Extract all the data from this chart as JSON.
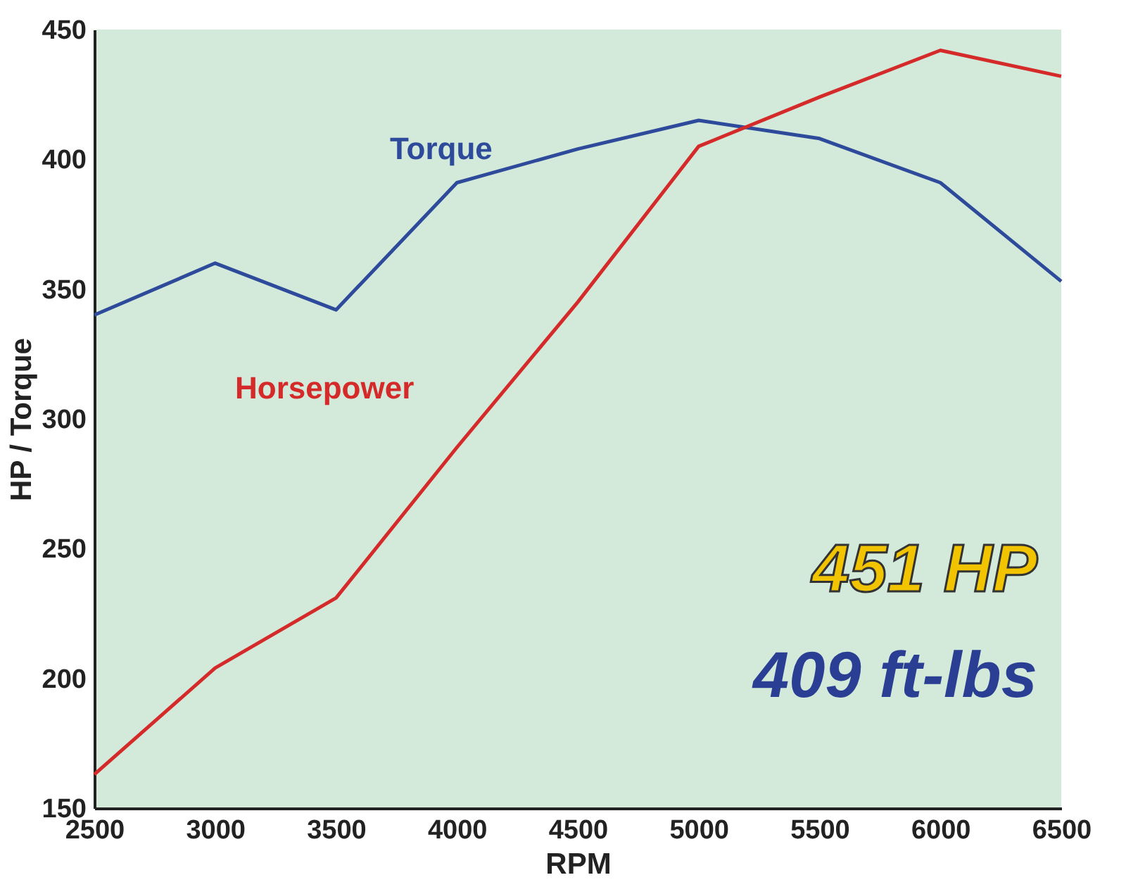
{
  "chart_data": {
    "type": "line",
    "xlabel": "RPM",
    "ylabel": "HP / Torque",
    "x": [
      2500,
      3000,
      3500,
      4000,
      4500,
      5000,
      5500,
      6000,
      6500
    ],
    "series": [
      {
        "name": "Torque",
        "color": "#2e4a9a",
        "values": [
          340,
          360,
          342,
          391,
          404,
          415,
          408,
          391,
          353
        ]
      },
      {
        "name": "Horsepower",
        "color": "#d42a2a",
        "values": [
          163,
          204,
          231,
          289,
          345,
          405,
          424,
          442,
          432
        ]
      }
    ],
    "xlim": [
      2500,
      6500
    ],
    "xticks": [
      2500,
      3000,
      3500,
      4000,
      4500,
      5000,
      5500,
      6000,
      6500
    ],
    "ylim": [
      150,
      450
    ],
    "yticks": [
      150,
      200,
      250,
      300,
      350,
      400,
      450
    ],
    "annotations": [
      "451 HP",
      "409 ft-lbs"
    ],
    "grid": false,
    "legend": false,
    "marker": "none",
    "line_style": "solid"
  }
}
